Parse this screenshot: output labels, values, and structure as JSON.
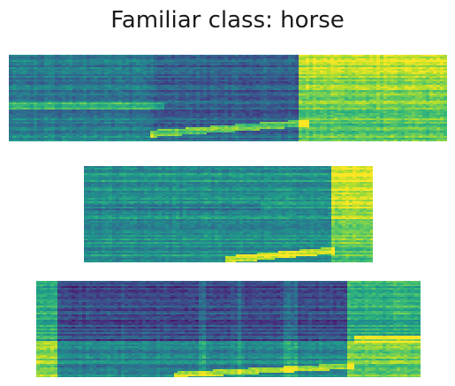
{
  "title": "Familiar class: horse",
  "colormap": {
    "name": "viridis",
    "stops": [
      "#440154",
      "#482878",
      "#3e4989",
      "#31688e",
      "#26828e",
      "#1f9e89",
      "#35b779",
      "#6ece58",
      "#b5de2b",
      "#fde725"
    ]
  },
  "spectrograms": [
    {
      "id": "spectrogram-1"
    },
    {
      "id": "spectrogram-2"
    },
    {
      "id": "spectrogram-3"
    }
  ]
}
